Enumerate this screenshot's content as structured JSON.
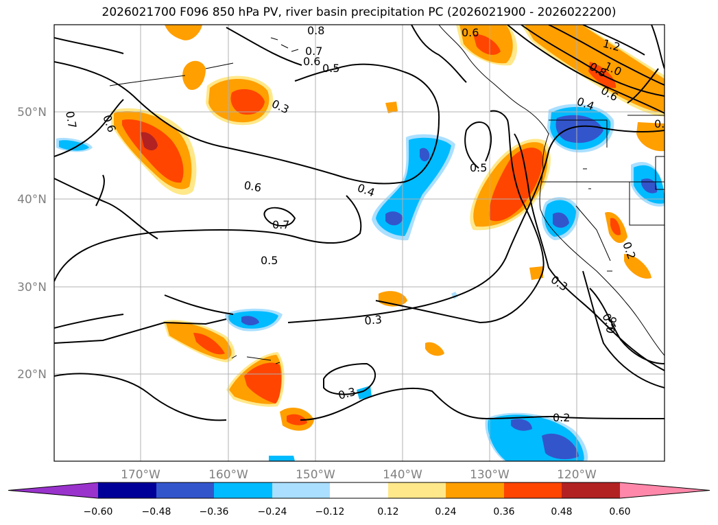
{
  "title": "2026021700 F096 850 hPa PV, river basin precipitation PC (2026021900 - 2026022200)",
  "lat_labels": [
    "50°N",
    "40°N",
    "30°N",
    "20°N"
  ],
  "lon_labels": [
    "170°W",
    "160°W",
    "150°W",
    "140°W",
    "130°W",
    "120°W"
  ],
  "contour_labels": [
    "0.7",
    "0.6",
    "0.8",
    "0.7",
    "0.6",
    "0.5",
    "0.3",
    "0.6",
    "0.4",
    "0.7",
    "0.5",
    "0.5",
    "0.3",
    "0.3",
    "0.6",
    "1.2",
    "1.0",
    "0.8",
    "0.6",
    "0.4",
    "0.3",
    "0.5",
    "0.6",
    "0.2",
    "0.2",
    "0.4"
  ],
  "colorbar": {
    "colors": [
      "#9933cc",
      "#000099",
      "#3355cc",
      "#00bbff",
      "#aadfff",
      "#ffffff",
      "#ffe88a",
      "#ff9f00",
      "#ff4500",
      "#b22222",
      "#ff88aa"
    ],
    "tick_labels": [
      "−0.60",
      "−0.48",
      "−0.36",
      "−0.24",
      "−0.12",
      "0.12",
      "0.24",
      "0.36",
      "0.48",
      "0.60"
    ]
  }
}
